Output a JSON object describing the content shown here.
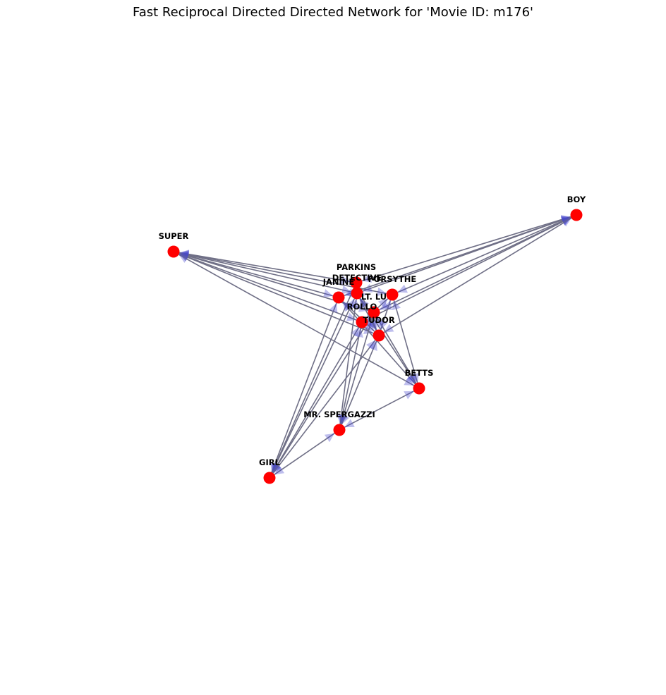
{
  "title": "Fast Reciprocal Directed Directed Network for 'Movie ID: m176'",
  "colors": {
    "node": "#ff0000",
    "edge": "#6f6f86",
    "arrow": "#4444cc",
    "label": "#000000",
    "background": "#ffffff"
  },
  "nodes": [
    {
      "id": "BOY",
      "label": "BOY"
    },
    {
      "id": "SUPER",
      "label": "SUPER"
    },
    {
      "id": "PARKINS",
      "label": "PARKINS"
    },
    {
      "id": "DETECTIVE",
      "label": "DETECTIVE"
    },
    {
      "id": "JANINE",
      "label": "JANINE"
    },
    {
      "id": "FORSYTHE",
      "label": "FORSYTHE"
    },
    {
      "id": "LT. LU",
      "label": "LT. LU"
    },
    {
      "id": "ROLLO",
      "label": "ROLLO"
    },
    {
      "id": "TUDOR",
      "label": "TUDOR"
    },
    {
      "id": "BETTS",
      "label": "BETTS"
    },
    {
      "id": "MR. SPERGAZZI",
      "label": "MR. SPERGAZZI"
    },
    {
      "id": "GIRL",
      "label": "GIRL"
    }
  ],
  "edges": [
    [
      "SUPER",
      "PARKINS"
    ],
    [
      "SUPER",
      "DETECTIVE"
    ],
    [
      "SUPER",
      "JANINE"
    ],
    [
      "SUPER",
      "FORSYTHE"
    ],
    [
      "SUPER",
      "LT. LU"
    ],
    [
      "SUPER",
      "ROLLO"
    ],
    [
      "SUPER",
      "TUDOR"
    ],
    [
      "SUPER",
      "BETTS"
    ],
    [
      "BOY",
      "PARKINS"
    ],
    [
      "BOY",
      "DETECTIVE"
    ],
    [
      "BOY",
      "JANINE"
    ],
    [
      "BOY",
      "FORSYTHE"
    ],
    [
      "BOY",
      "LT. LU"
    ],
    [
      "BOY",
      "ROLLO"
    ],
    [
      "BOY",
      "TUDOR"
    ],
    [
      "GIRL",
      "PARKINS"
    ],
    [
      "GIRL",
      "DETECTIVE"
    ],
    [
      "GIRL",
      "JANINE"
    ],
    [
      "GIRL",
      "LT. LU"
    ],
    [
      "GIRL",
      "ROLLO"
    ],
    [
      "GIRL",
      "TUDOR"
    ],
    [
      "GIRL",
      "MR. SPERGAZZI"
    ],
    [
      "MR. SPERGAZZI",
      "BETTS"
    ],
    [
      "MR. SPERGAZZI",
      "LT. LU"
    ],
    [
      "MR. SPERGAZZI",
      "ROLLO"
    ],
    [
      "MR. SPERGAZZI",
      "DETECTIVE"
    ],
    [
      "MR. SPERGAZZI",
      "TUDOR"
    ],
    [
      "BETTS",
      "JANINE"
    ],
    [
      "BETTS",
      "DETECTIVE"
    ],
    [
      "BETTS",
      "FORSYTHE"
    ],
    [
      "BETTS",
      "LT. LU"
    ],
    [
      "JANINE",
      "TUDOR"
    ],
    [
      "PARKINS",
      "TUDOR"
    ],
    [
      "FORSYTHE",
      "ROLLO"
    ],
    [
      "DETECTIVE",
      "TUDOR"
    ],
    [
      "FORSYTHE",
      "TUDOR"
    ]
  ]
}
